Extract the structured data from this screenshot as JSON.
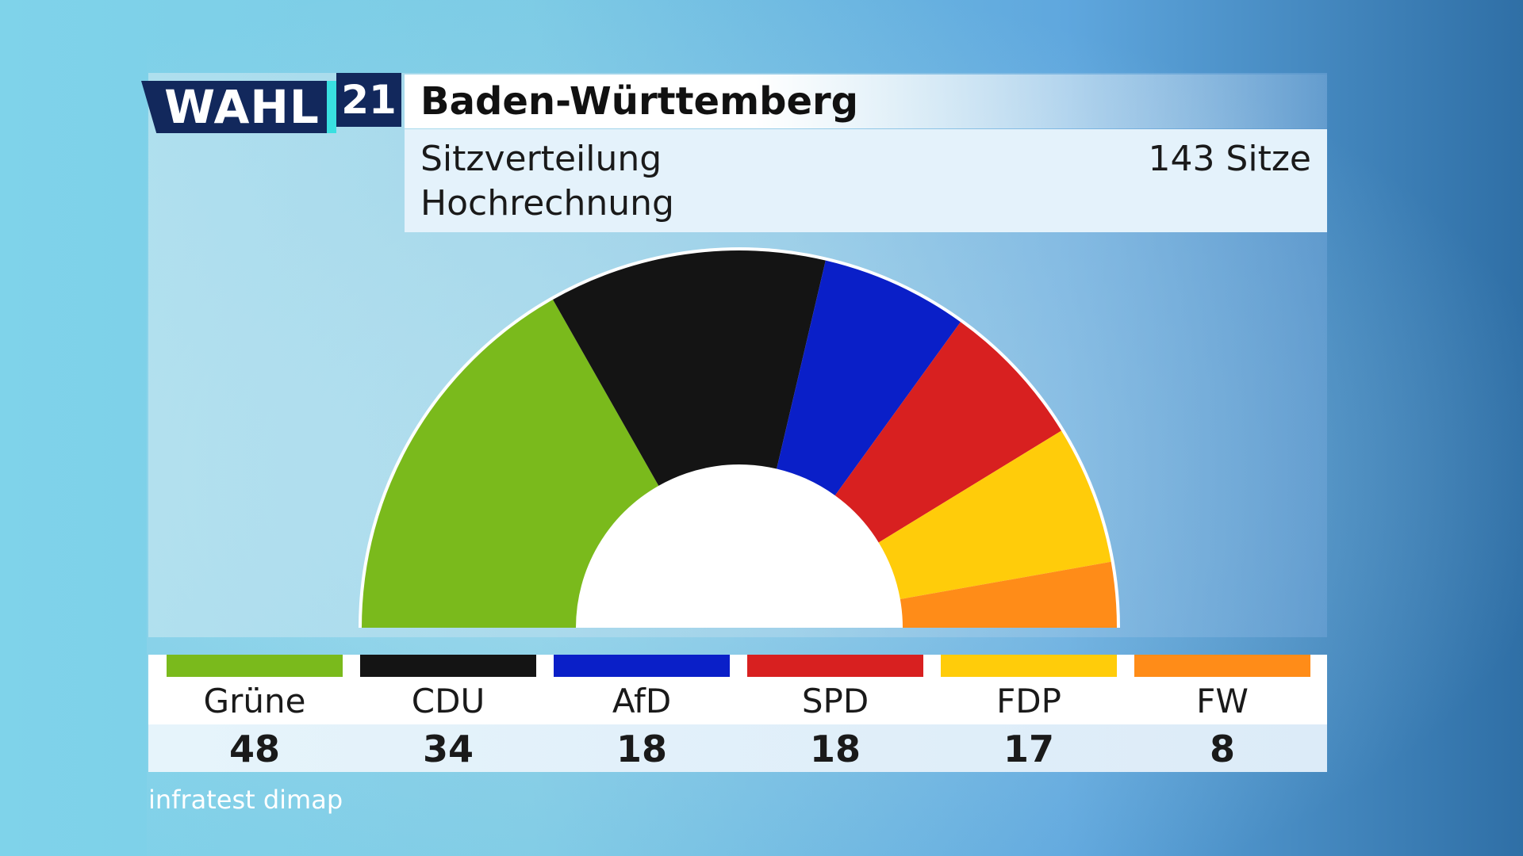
{
  "logo": {
    "wahl": "WAHL",
    "year": "21"
  },
  "header": {
    "title": "Baden-Württemberg",
    "subtitle_line1": "Sitzverteilung",
    "subtitle_line2": "Hochrechnung",
    "seats_total": "143 Sitze"
  },
  "chart_data": {
    "type": "pie",
    "variant": "half-donut seat distribution",
    "title": "Baden-Württemberg",
    "subtitle": "Sitzverteilung Hochrechnung",
    "total_label": "143 Sitze",
    "total": 143,
    "categories": [
      "Grüne",
      "CDU",
      "AfD",
      "SPD",
      "FDP",
      "FW"
    ],
    "values": [
      48,
      34,
      18,
      18,
      17,
      8
    ],
    "colors": [
      "#7aba1c",
      "#141414",
      "#0a1fc8",
      "#d82020",
      "#ffcc0a",
      "#ff8c18"
    ],
    "legend": "bottom"
  },
  "source": "infratest dimap"
}
